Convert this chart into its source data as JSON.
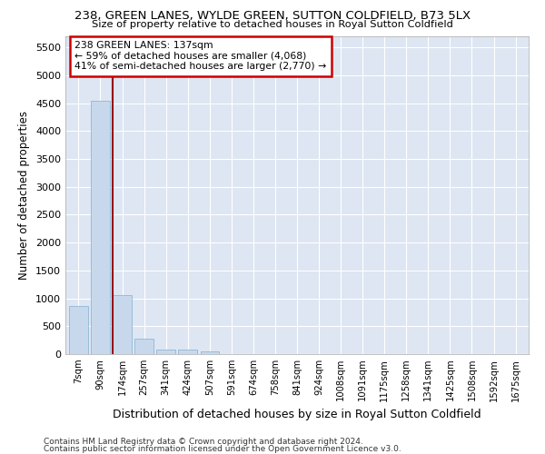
{
  "title": "238, GREEN LANES, WYLDE GREEN, SUTTON COLDFIELD, B73 5LX",
  "subtitle": "Size of property relative to detached houses in Royal Sutton Coldfield",
  "xlabel": "Distribution of detached houses by size in Royal Sutton Coldfield",
  "ylabel": "Number of detached properties",
  "footnote1": "Contains HM Land Registry data © Crown copyright and database right 2024.",
  "footnote2": "Contains public sector information licensed under the Open Government Licence v3.0.",
  "annotation_title": "238 GREEN LANES: 137sqm",
  "annotation_line1": "← 59% of detached houses are smaller (4,068)",
  "annotation_line2": "41% of semi-detached houses are larger (2,770) →",
  "bar_color": "#c8d8ec",
  "bar_edge_color": "#7fafd0",
  "vline_color": "#990000",
  "annotation_box_edgecolor": "#cc0000",
  "bg_color": "#dde6f2",
  "grid_color": "#ffffff",
  "categories": [
    "7sqm",
    "90sqm",
    "174sqm",
    "257sqm",
    "341sqm",
    "424sqm",
    "507sqm",
    "591sqm",
    "674sqm",
    "758sqm",
    "841sqm",
    "924sqm",
    "1008sqm",
    "1091sqm",
    "1175sqm",
    "1258sqm",
    "1341sqm",
    "1425sqm",
    "1508sqm",
    "1592sqm",
    "1675sqm"
  ],
  "values": [
    870,
    4550,
    1060,
    280,
    85,
    75,
    55,
    0,
    0,
    0,
    0,
    0,
    0,
    0,
    0,
    0,
    0,
    0,
    0,
    0,
    0
  ],
  "vline_pos": 1.58,
  "ylim": [
    0,
    5700
  ],
  "yticks": [
    0,
    500,
    1000,
    1500,
    2000,
    2500,
    3000,
    3500,
    4000,
    4500,
    5000,
    5500
  ],
  "bar_width": 0.85,
  "figwidth": 6.0,
  "figheight": 5.0,
  "dpi": 100
}
